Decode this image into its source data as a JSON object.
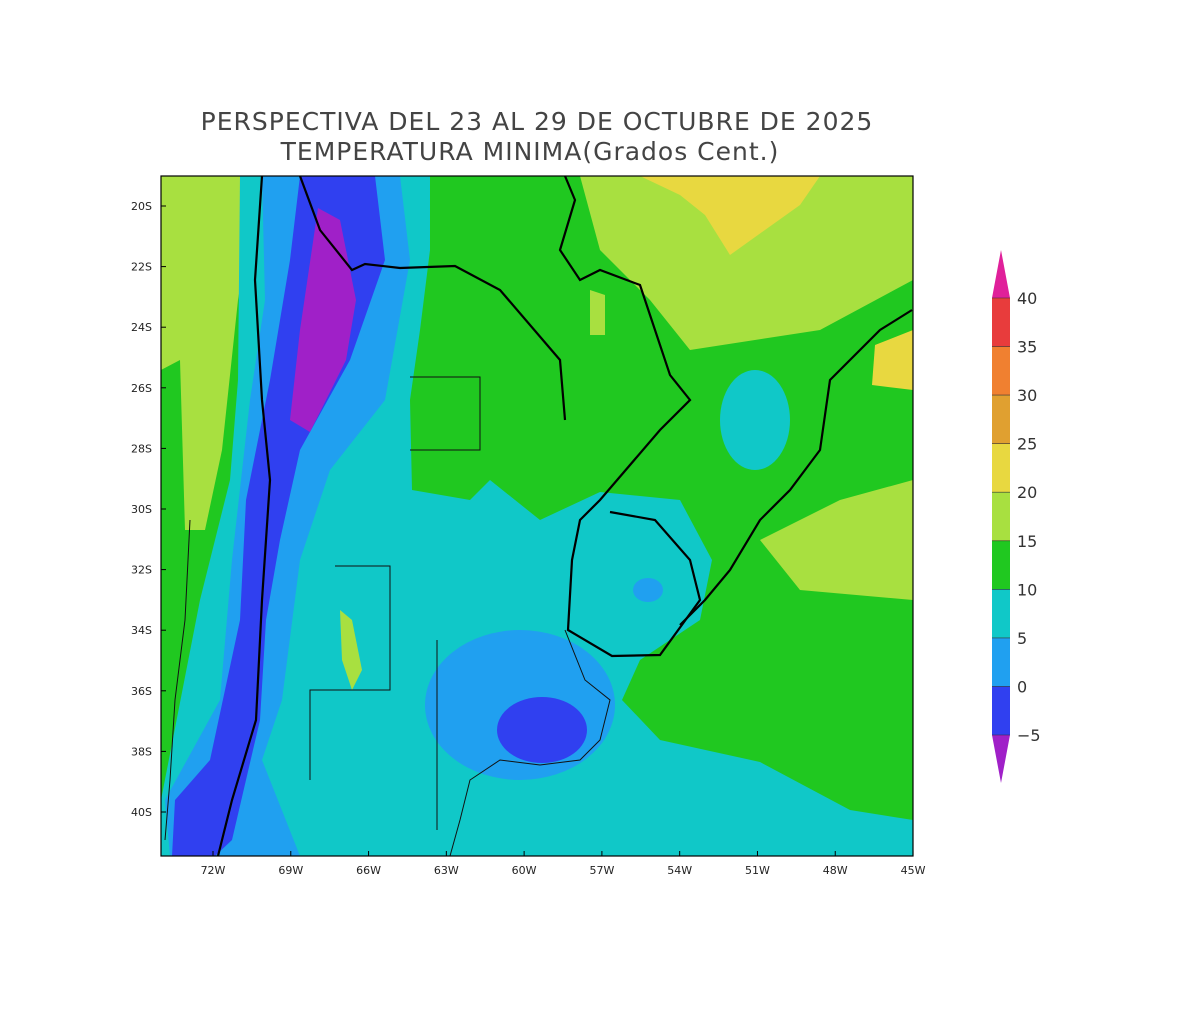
{
  "map": {
    "title": "PERSPECTIVA DEL 23 AL 29 DE OCTUBRE DE 2025",
    "subtitle": "TEMPERATURA MINIMA(Grados Cent.)",
    "lat_labels": [
      "20S",
      "22S",
      "24S",
      "26S",
      "28S",
      "30S",
      "32S",
      "34S",
      "36S",
      "38S",
      "40S"
    ],
    "lon_labels": [
      "72W",
      "69W",
      "66W",
      "63W",
      "60W",
      "57W",
      "54W",
      "51W",
      "48W",
      "45W"
    ]
  },
  "colorbar": {
    "labels": [
      40,
      35,
      30,
      25,
      20,
      15,
      10,
      5,
      0,
      {
        "value": -5,
        "label": "−5"
      }
    ],
    "colors": [
      "#e0209a",
      "#e83c3c",
      "#f08030",
      "#e0a030",
      "#e8d840",
      "#a8e040",
      "#20c820",
      "#10c8c8",
      "#20a0f0",
      "#3040f0",
      "#a020c8"
    ]
  }
}
